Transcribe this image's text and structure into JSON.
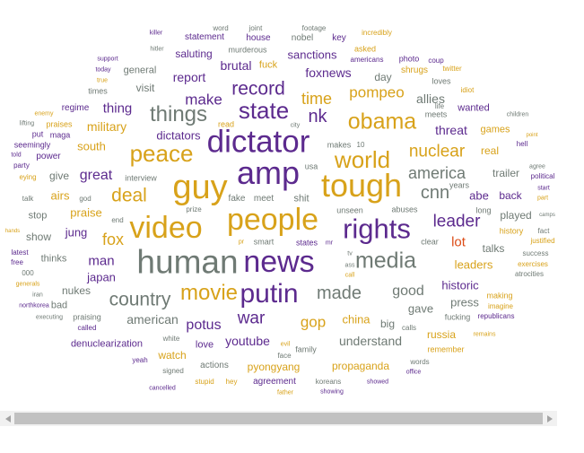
{
  "cloud": {
    "colors": {
      "purple": "#5c2a8e",
      "gold": "#d8a21a",
      "gray": "#6f7a74",
      "orange": "#dc4b16"
    },
    "words": [
      "killer",
      "word",
      "joint",
      "footage",
      "incredibly",
      "hitler",
      "support",
      "statement",
      "house",
      "nobel",
      "key",
      "photo",
      "coup",
      "today",
      "saluting",
      "murderous",
      "sanctions",
      "asked",
      "true",
      "americans",
      "twitter",
      "general",
      "brutal",
      "fuck",
      "shrugs",
      "report",
      "foxnews",
      "loves",
      "times",
      "visit",
      "day",
      "idiot",
      "make",
      "record",
      "allies",
      "regime",
      "enemy",
      "thing",
      "state",
      "pompeo",
      "lifting",
      "praises",
      "life",
      "things",
      "wanted",
      "put",
      "maga",
      "nk",
      "meets",
      "military",
      "obama",
      "time",
      "city",
      "read",
      "games",
      "threat",
      "children",
      "dictators",
      "hell",
      "seemingly",
      "told",
      "south",
      "point",
      "peace",
      "dictator",
      "makes",
      "10",
      "nuclear",
      "real",
      "power",
      "party",
      "agree",
      "america",
      "trailer",
      "political",
      "world",
      "eying",
      "guy",
      "great",
      "amp",
      "give",
      "tough",
      "start",
      "airs",
      "interview",
      "usa",
      "years",
      "abe",
      "back",
      "part",
      "talk",
      "deal",
      "god",
      "cnn",
      "fake",
      "meet",
      "shit",
      "long",
      "prize",
      "leader",
      "played",
      "stop",
      "praise",
      "unseen",
      "abuses",
      "camps",
      "video",
      "end",
      "rights",
      "people",
      "jung",
      "history",
      "hands",
      "show",
      "fox",
      "clear",
      "lot",
      "talks",
      "fact",
      "justified",
      "thinks",
      "mr",
      "states",
      "smart",
      "latest",
      "free",
      "pr",
      "tv",
      "success",
      "leaders",
      "man",
      "ass",
      "call",
      "exercises",
      "media",
      "news",
      "000",
      "japan",
      "human",
      "generals",
      "made",
      "atrocities",
      "iran",
      "historic",
      "making",
      "putin",
      "good",
      "movie",
      "bad",
      "country",
      "nukes",
      "press",
      "northkorea",
      "imagine",
      "gave",
      "republicans",
      "executing",
      "praising",
      "calls",
      "war",
      "potus",
      "fucking",
      "american",
      "big",
      "called",
      "gop",
      "china",
      "russia",
      "remains",
      "white",
      "understand",
      "youtube",
      "denuclearization",
      "love",
      "watch",
      "evil",
      "family",
      "remember",
      "yeah",
      "face",
      "signed",
      "actions",
      "pyongyang",
      "propaganda",
      "words",
      "office",
      "stupid",
      "hey",
      "agreement",
      "koreans",
      "showed",
      "cancelled",
      "father",
      "showing"
    ]
  },
  "scrollbar": {
    "left_arrow_icon": "triangle-left",
    "right_arrow_icon": "triangle-right"
  }
}
